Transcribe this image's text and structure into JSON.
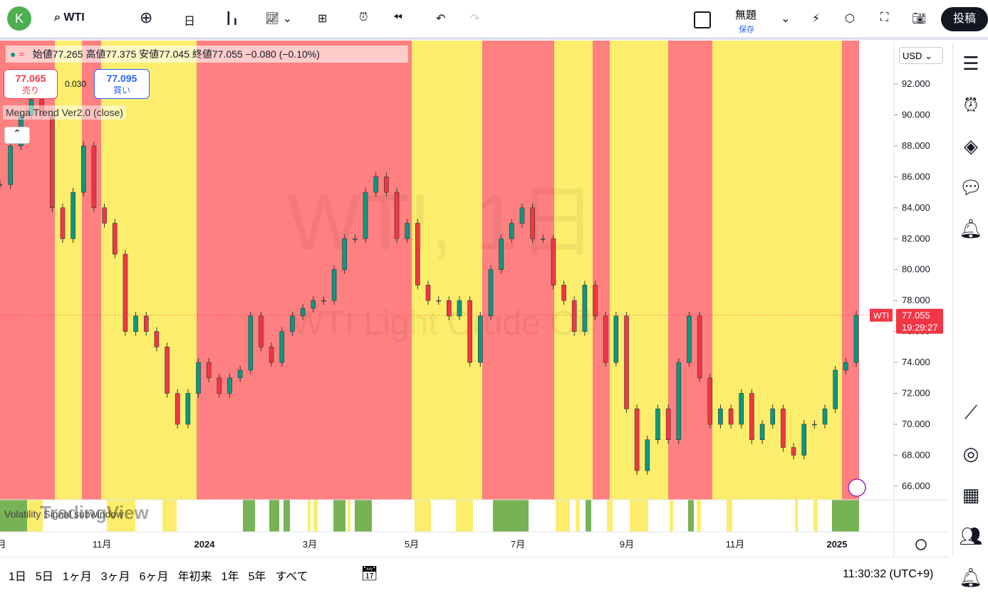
{
  "toolbar": {
    "avatar": "K",
    "symbol": "WTI",
    "interval": "日",
    "layout_name": "無題",
    "save": "保存",
    "publish": "投稿"
  },
  "legend": {
    "open_label": "始値",
    "open": "77.265",
    "high_label": "高値",
    "high": "77.375",
    "low_label": "安値",
    "low": "77.045",
    "close_label": "終値",
    "close": "77.055",
    "change": "−0.080 (−0.10%)",
    "sell_price": "77.065",
    "sell": "売り",
    "spread": "0.030",
    "buy_price": "77.095",
    "buy": "買い",
    "indicator": "Mega Trend Ver2.0 (close)",
    "subwindow": "Volatility Signal subwindow"
  },
  "watermark": {
    "title": "WTI, 1日",
    "subtitle": "WTI Light Crude Oil",
    "logo": "TradingView"
  },
  "chart": {
    "currency": "USD",
    "ylim": [
      65.12,
      94.81
    ],
    "yticks": [
      {
        "value": 66,
        "label": "66.000"
      },
      {
        "value": 68,
        "label": "68.000"
      },
      {
        "value": 70,
        "label": "70.000"
      },
      {
        "value": 72,
        "label": "72.000"
      },
      {
        "value": 74,
        "label": "74.000"
      },
      {
        "value": 76,
        "label": "76.000"
      },
      {
        "value": 78,
        "label": "78.000"
      },
      {
        "value": 80,
        "label": "80.000"
      },
      {
        "value": 82,
        "label": "82.000"
      },
      {
        "value": 84,
        "label": "84.000"
      },
      {
        "value": 86,
        "label": "86.000"
      },
      {
        "value": 88,
        "label": "88.000"
      },
      {
        "value": 90,
        "label": "90.000"
      },
      {
        "value": 92,
        "label": "92.000"
      }
    ],
    "xticks": [
      "月",
      "11月",
      "2024",
      "3月",
      "5月",
      "7月",
      "9月",
      "11月",
      "2025"
    ],
    "closes": [
      85.5,
      88,
      90,
      91,
      90,
      84,
      82,
      85,
      88,
      84,
      83,
      81,
      76,
      77,
      76,
      75,
      72,
      70,
      72,
      74,
      73,
      72,
      73,
      73.5,
      77,
      75,
      74,
      76,
      77,
      77.5,
      78,
      78,
      80,
      82,
      82,
      85,
      86,
      85,
      82,
      83,
      79,
      78,
      78,
      77,
      78,
      74,
      77,
      80,
      82,
      83,
      84,
      82,
      82,
      79,
      78,
      76,
      79,
      77,
      74,
      77,
      71,
      67,
      69,
      71,
      69,
      74,
      77,
      73,
      70,
      71,
      70,
      72,
      69,
      70,
      71,
      68.5,
      68,
      70,
      70,
      71,
      73.5,
      74,
      77.055
    ],
    "last_price": {
      "value": 77.055,
      "label": "77.055"
    },
    "symbol_tag": "WTI",
    "countdown": "19:29:27"
  },
  "bottom": {
    "ranges": [
      "1日",
      "5日",
      "1ヶ月",
      "3ヶ月",
      "6ヶ月",
      "年初来",
      "1年",
      "5年",
      "すべて"
    ],
    "clock": "11:30:32 (UTC+9)"
  }
}
